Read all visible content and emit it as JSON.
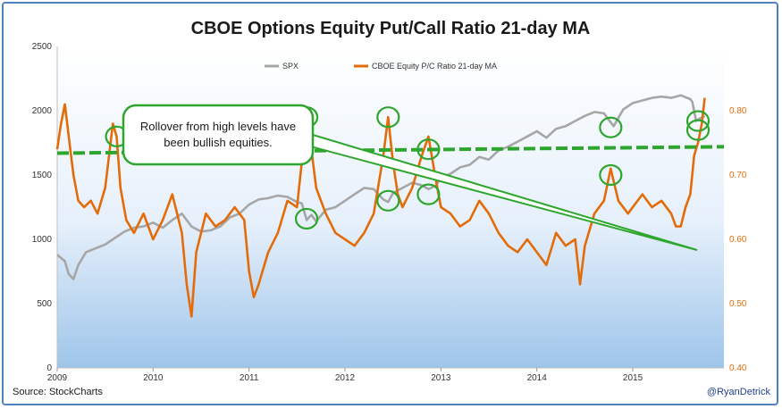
{
  "chart_data": {
    "type": "line",
    "title": "CBOE Options Equity Put/Call Ratio 21-day MA",
    "x_ticks": [
      "2009",
      "2010",
      "2011",
      "2012",
      "2013",
      "2014",
      "2015"
    ],
    "x_range": [
      2009.0,
      2015.95
    ],
    "y_left": {
      "ticks": [
        "0",
        "500",
        "1000",
        "1500",
        "2000",
        "2500"
      ],
      "range": [
        0,
        2500
      ]
    },
    "y_right": {
      "ticks": [
        "0.40",
        "0.50",
        "0.60",
        "0.70",
        "0.80"
      ],
      "range": [
        0.4,
        0.9
      ]
    },
    "legend": {
      "position": "top",
      "entries": [
        "SPX",
        "CBOE Equity P/C Ratio 21-day MA"
      ]
    },
    "colors": {
      "spx": "#a6a6a6",
      "pc": "#e36c09",
      "highlight": "#2ea62e",
      "plot_bg_top": "#ffffff",
      "plot_bg_bottom": "#9ec5ea"
    },
    "series": [
      {
        "name": "SPX",
        "axis": "left",
        "x": [
          2009.0,
          2009.08,
          2009.12,
          2009.17,
          2009.22,
          2009.3,
          2009.4,
          2009.5,
          2009.6,
          2009.7,
          2009.8,
          2009.9,
          2010.0,
          2010.1,
          2010.2,
          2010.3,
          2010.4,
          2010.5,
          2010.6,
          2010.7,
          2010.8,
          2010.9,
          2011.0,
          2011.1,
          2011.2,
          2011.3,
          2011.4,
          2011.5,
          2011.55,
          2011.6,
          2011.65,
          2011.7,
          2011.8,
          2011.9,
          2012.0,
          2012.1,
          2012.2,
          2012.3,
          2012.4,
          2012.45,
          2012.5,
          2012.6,
          2012.7,
          2012.8,
          2012.87,
          2012.95,
          2013.0,
          2013.1,
          2013.2,
          2013.3,
          2013.4,
          2013.5,
          2013.6,
          2013.7,
          2013.8,
          2013.9,
          2014.0,
          2014.1,
          2014.2,
          2014.3,
          2014.4,
          2014.5,
          2014.6,
          2014.7,
          2014.77,
          2014.8,
          2014.9,
          2015.0,
          2015.1,
          2015.2,
          2015.3,
          2015.4,
          2015.5,
          2015.6,
          2015.62,
          2015.66,
          2015.7,
          2015.75
        ],
        "y": [
          880,
          830,
          730,
          690,
          800,
          900,
          930,
          960,
          1010,
          1060,
          1090,
          1100,
          1130,
          1090,
          1150,
          1200,
          1100,
          1060,
          1070,
          1100,
          1170,
          1200,
          1270,
          1310,
          1320,
          1340,
          1330,
          1290,
          1280,
          1150,
          1190,
          1140,
          1230,
          1250,
          1300,
          1350,
          1400,
          1390,
          1310,
          1290,
          1360,
          1400,
          1440,
          1420,
          1390,
          1420,
          1480,
          1510,
          1560,
          1580,
          1640,
          1620,
          1690,
          1720,
          1760,
          1800,
          1840,
          1790,
          1860,
          1880,
          1920,
          1960,
          1990,
          1980,
          1910,
          1880,
          2010,
          2060,
          2080,
          2100,
          2110,
          2100,
          2120,
          2090,
          2070,
          1920,
          1940,
          1960
        ]
      },
      {
        "name": "CBOE Equity P/C Ratio 21-day MA",
        "axis": "right",
        "x": [
          2009.0,
          2009.04,
          2009.08,
          2009.12,
          2009.17,
          2009.22,
          2009.28,
          2009.35,
          2009.42,
          2009.5,
          2009.58,
          2009.62,
          2009.66,
          2009.72,
          2009.8,
          2009.9,
          2010.0,
          2010.1,
          2010.2,
          2010.3,
          2010.35,
          2010.4,
          2010.45,
          2010.55,
          2010.65,
          2010.75,
          2010.85,
          2010.95,
          2011.0,
          2011.05,
          2011.1,
          2011.2,
          2011.3,
          2011.4,
          2011.5,
          2011.55,
          2011.6,
          2011.65,
          2011.7,
          2011.8,
          2011.9,
          2012.0,
          2012.1,
          2012.2,
          2012.3,
          2012.4,
          2012.45,
          2012.5,
          2012.55,
          2012.6,
          2012.7,
          2012.8,
          2012.87,
          2012.95,
          2013.0,
          2013.1,
          2013.2,
          2013.3,
          2013.4,
          2013.5,
          2013.6,
          2013.7,
          2013.8,
          2013.9,
          2014.0,
          2014.1,
          2014.2,
          2014.3,
          2014.4,
          2014.45,
          2014.5,
          2014.6,
          2014.7,
          2014.77,
          2014.85,
          2014.95,
          2015.0,
          2015.1,
          2015.2,
          2015.3,
          2015.4,
          2015.45,
          2015.5,
          2015.55,
          2015.6,
          2015.64,
          2015.68,
          2015.72,
          2015.75
        ],
        "y": [
          0.74,
          0.78,
          0.81,
          0.76,
          0.7,
          0.66,
          0.65,
          0.66,
          0.64,
          0.68,
          0.78,
          0.76,
          0.68,
          0.63,
          0.61,
          0.64,
          0.6,
          0.63,
          0.67,
          0.61,
          0.53,
          0.48,
          0.58,
          0.64,
          0.62,
          0.63,
          0.65,
          0.63,
          0.55,
          0.51,
          0.53,
          0.58,
          0.61,
          0.66,
          0.65,
          0.72,
          0.79,
          0.74,
          0.68,
          0.64,
          0.61,
          0.6,
          0.59,
          0.61,
          0.64,
          0.73,
          0.79,
          0.72,
          0.67,
          0.65,
          0.68,
          0.73,
          0.76,
          0.69,
          0.65,
          0.64,
          0.62,
          0.63,
          0.66,
          0.64,
          0.61,
          0.59,
          0.58,
          0.6,
          0.58,
          0.56,
          0.61,
          0.59,
          0.6,
          0.53,
          0.59,
          0.64,
          0.66,
          0.71,
          0.66,
          0.64,
          0.65,
          0.67,
          0.65,
          0.66,
          0.64,
          0.62,
          0.62,
          0.65,
          0.67,
          0.73,
          0.75,
          0.78,
          0.82
        ]
      }
    ],
    "threshold_line": {
      "label": "",
      "y_right": 0.734,
      "y_right_end": 0.744
    },
    "annotations": [
      {
        "text": "Rollover from high levels have been bullish equities.",
        "lines": [
          "Rollover from high levels have",
          "been bullish equities."
        ]
      }
    ],
    "highlights_spx": [
      [
        2011.6,
        1160
      ],
      [
        2012.45,
        1300
      ],
      [
        2012.87,
        1350
      ],
      [
        2014.77,
        1870
      ],
      [
        2015.68,
        1920
      ]
    ],
    "highlights_pc": [
      [
        2009.62,
        0.76
      ],
      [
        2011.6,
        0.79
      ],
      [
        2012.45,
        0.79
      ],
      [
        2012.87,
        0.74
      ],
      [
        2014.77,
        0.7
      ],
      [
        2015.68,
        0.77
      ]
    ]
  },
  "footer": {
    "source": "Source:  StockCharts",
    "credit": "@RyanDetrick"
  }
}
